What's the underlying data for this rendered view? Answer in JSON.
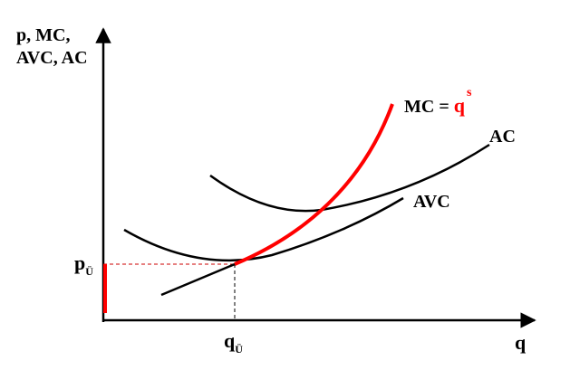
{
  "axes": {
    "y_label_line1": "p, MC,",
    "y_label_line2": "AVC, AC",
    "x_label": "q"
  },
  "labels": {
    "p_main": "p",
    "p_sub": "Ü",
    "q_main": "q",
    "q_sub": "Ü",
    "ac": "AC",
    "avc": "AVC",
    "mc_prefix": "MC = ",
    "mc_q": "q",
    "mc_sup": "s"
  },
  "colors": {
    "supply_curve": "#ff0000",
    "cost_curves": "#000000",
    "guide_lines": "#cc0000"
  }
}
